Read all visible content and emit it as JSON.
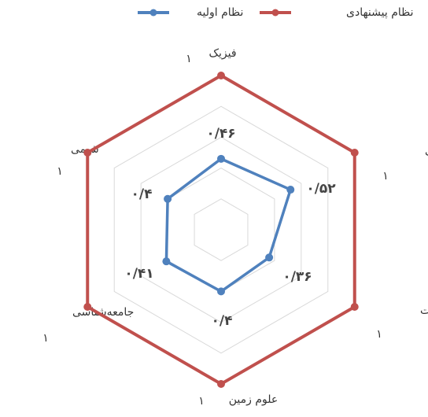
{
  "chart_data": {
    "type": "radar",
    "categories": [
      "فیزیک",
      "علوم زیستی",
      "ریاضیات",
      "علوم زمین",
      "جامعه‌شناسی",
      "شیمی"
    ],
    "series": [
      {
        "name": "نظام پیشنهادی",
        "color": "#c0504d",
        "values": [
          1,
          1,
          1,
          1,
          1,
          1
        ],
        "value_labels": [
          "۱",
          "۱",
          "۱",
          "۱",
          "۱",
          "۱"
        ]
      },
      {
        "name": "نظام اولیه",
        "color": "#4f81bd",
        "values": [
          0.46,
          0.52,
          0.36,
          0.4,
          0.41,
          0.4
        ],
        "value_labels": [
          "۰/۴۶",
          "۰/۵۲",
          "۰/۳۶",
          "۰/۴",
          "۰/۴۱",
          "۰/۴"
        ]
      }
    ],
    "ylim": [
      0,
      1
    ],
    "yticks": [
      0,
      0.2,
      0.4,
      0.6,
      0.8,
      1
    ],
    "grid": true,
    "legend": "top"
  }
}
